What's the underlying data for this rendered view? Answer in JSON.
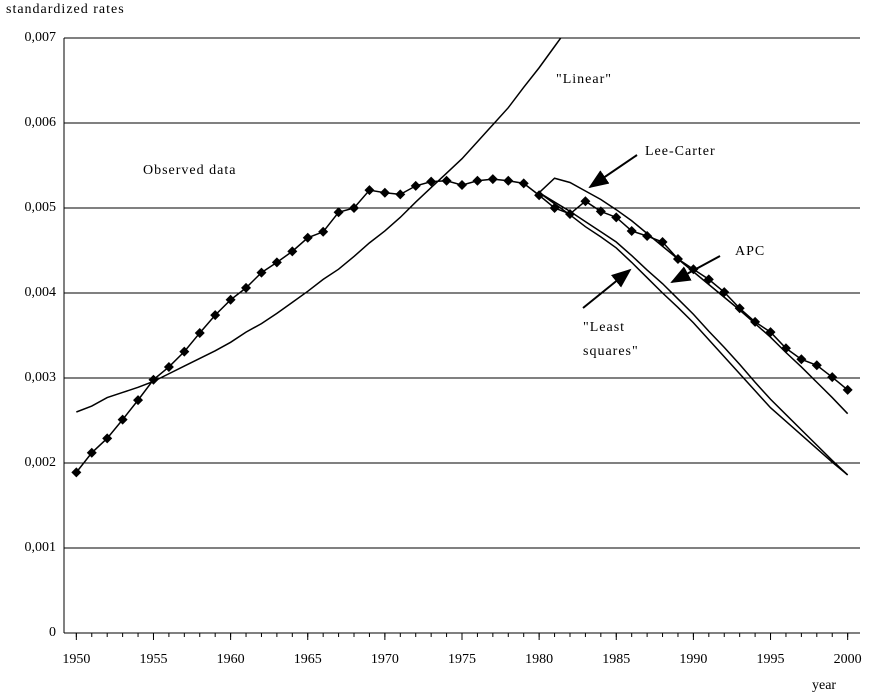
{
  "chart_data": {
    "type": "line",
    "y_label": "standardized rates",
    "x_label": "year",
    "xlim": [
      1949.2,
      2000.8
    ],
    "xticks": [
      1950,
      1955,
      1960,
      1965,
      1970,
      1975,
      1980,
      1985,
      1990,
      1995,
      2000
    ],
    "ylim": [
      0,
      0.007
    ],
    "yticks": [
      0,
      {
        "value": 0.001,
        "label": "0,001"
      },
      {
        "value": 0.002,
        "label": "0,002"
      },
      {
        "value": 0.003,
        "label": "0,003"
      },
      {
        "value": 0.004,
        "label": "0,004"
      },
      {
        "value": 0.005,
        "label": "0,005"
      },
      {
        "value": 0.006,
        "label": "0,006"
      },
      {
        "value": 0.007,
        "label": "0,007"
      }
    ],
    "grid": true,
    "x": [
      1950,
      1951,
      1952,
      1953,
      1954,
      1955,
      1956,
      1957,
      1958,
      1959,
      1960,
      1961,
      1962,
      1963,
      1964,
      1965,
      1966,
      1967,
      1968,
      1969,
      1970,
      1971,
      1972,
      1973,
      1974,
      1975,
      1976,
      1977,
      1978,
      1979,
      1980,
      1981,
      1982,
      1983,
      1984,
      1985,
      1986,
      1987,
      1988,
      1989,
      1990,
      1991,
      1992,
      1993,
      1994,
      1995,
      1996,
      1997,
      1998,
      1999,
      2000
    ],
    "series": [
      {
        "name": "Observed data",
        "color": "#000000",
        "marker": "diamond",
        "values": [
          0.00189,
          0.00212,
          0.00229,
          0.00251,
          0.00274,
          0.00298,
          0.00313,
          0.00331,
          0.00353,
          0.00374,
          0.00392,
          0.00406,
          0.00424,
          0.00436,
          0.00449,
          0.00465,
          0.00472,
          0.00495,
          0.005,
          0.00521,
          0.00518,
          0.00516,
          0.00526,
          0.00531,
          0.00532,
          0.00527,
          0.00532,
          0.00534,
          0.00532,
          0.00529,
          0.00515,
          0.005,
          0.00493,
          0.00508,
          0.00496,
          0.00489,
          0.00473,
          0.00467,
          0.0046,
          0.0044,
          0.00428,
          0.00416,
          0.00401,
          0.00382,
          0.00366,
          0.00354,
          0.00335,
          0.00322,
          0.00315,
          0.00301,
          0.00286
        ]
      },
      {
        "name": "\"Linear\"",
        "color": "#000000",
        "values": [
          0.0026,
          0.00267,
          0.00277,
          0.00283,
          0.00289,
          0.00296,
          0.00305,
          0.00314,
          0.00323,
          0.00332,
          0.00342,
          0.00354,
          0.00364,
          0.00376,
          0.00389,
          0.00402,
          0.00416,
          0.00428,
          0.00443,
          0.00459,
          0.00473,
          0.00489,
          0.00507,
          0.00524,
          0.00541,
          0.00558,
          0.00578,
          0.00598,
          0.00618,
          0.00642,
          0.00665,
          0.0069,
          0.00715,
          null,
          null,
          null,
          null,
          null,
          null,
          null,
          null,
          null,
          null,
          null,
          null,
          null,
          null,
          null,
          null,
          null,
          null
        ]
      },
      {
        "name": "Lee-Carter",
        "color": "#000000",
        "values": [
          null,
          null,
          null,
          null,
          null,
          null,
          null,
          null,
          null,
          null,
          null,
          null,
          null,
          null,
          null,
          null,
          null,
          null,
          null,
          null,
          null,
          null,
          null,
          null,
          null,
          null,
          null,
          null,
          null,
          null,
          0.00518,
          0.00535,
          0.0053,
          0.0052,
          0.0051,
          0.00498,
          0.00485,
          0.0047,
          0.00455,
          0.0044,
          0.00425,
          0.0041,
          0.00395,
          0.0038,
          0.00364,
          0.00348,
          0.0033,
          0.00313,
          0.00295,
          0.00277,
          0.00258
        ]
      },
      {
        "name": "APC",
        "color": "#000000",
        "values": [
          null,
          null,
          null,
          null,
          null,
          null,
          null,
          null,
          null,
          null,
          null,
          null,
          null,
          null,
          null,
          null,
          null,
          null,
          null,
          null,
          null,
          null,
          null,
          null,
          null,
          null,
          null,
          null,
          null,
          null,
          0.00518,
          0.00507,
          0.00496,
          0.00484,
          0.00472,
          0.0046,
          0.00444,
          0.00427,
          0.00411,
          0.00393,
          0.00375,
          0.00355,
          0.00336,
          0.00316,
          0.00295,
          0.00275,
          0.00257,
          0.00239,
          0.00221,
          0.00203,
          0.00186
        ]
      },
      {
        "name": "\"Least squares\"",
        "color": "#000000",
        "values": [
          null,
          null,
          null,
          null,
          null,
          null,
          null,
          null,
          null,
          null,
          null,
          null,
          null,
          null,
          null,
          null,
          null,
          null,
          null,
          null,
          null,
          null,
          null,
          null,
          null,
          null,
          null,
          null,
          null,
          null,
          0.00518,
          0.00505,
          0.00492,
          0.00478,
          0.00466,
          0.00453,
          0.00436,
          0.00418,
          0.004,
          0.00383,
          0.00365,
          0.00345,
          0.00325,
          0.00305,
          0.00285,
          0.00265,
          0.00249,
          0.00233,
          0.00217,
          0.00201,
          0.00186
        ]
      }
    ]
  }
}
